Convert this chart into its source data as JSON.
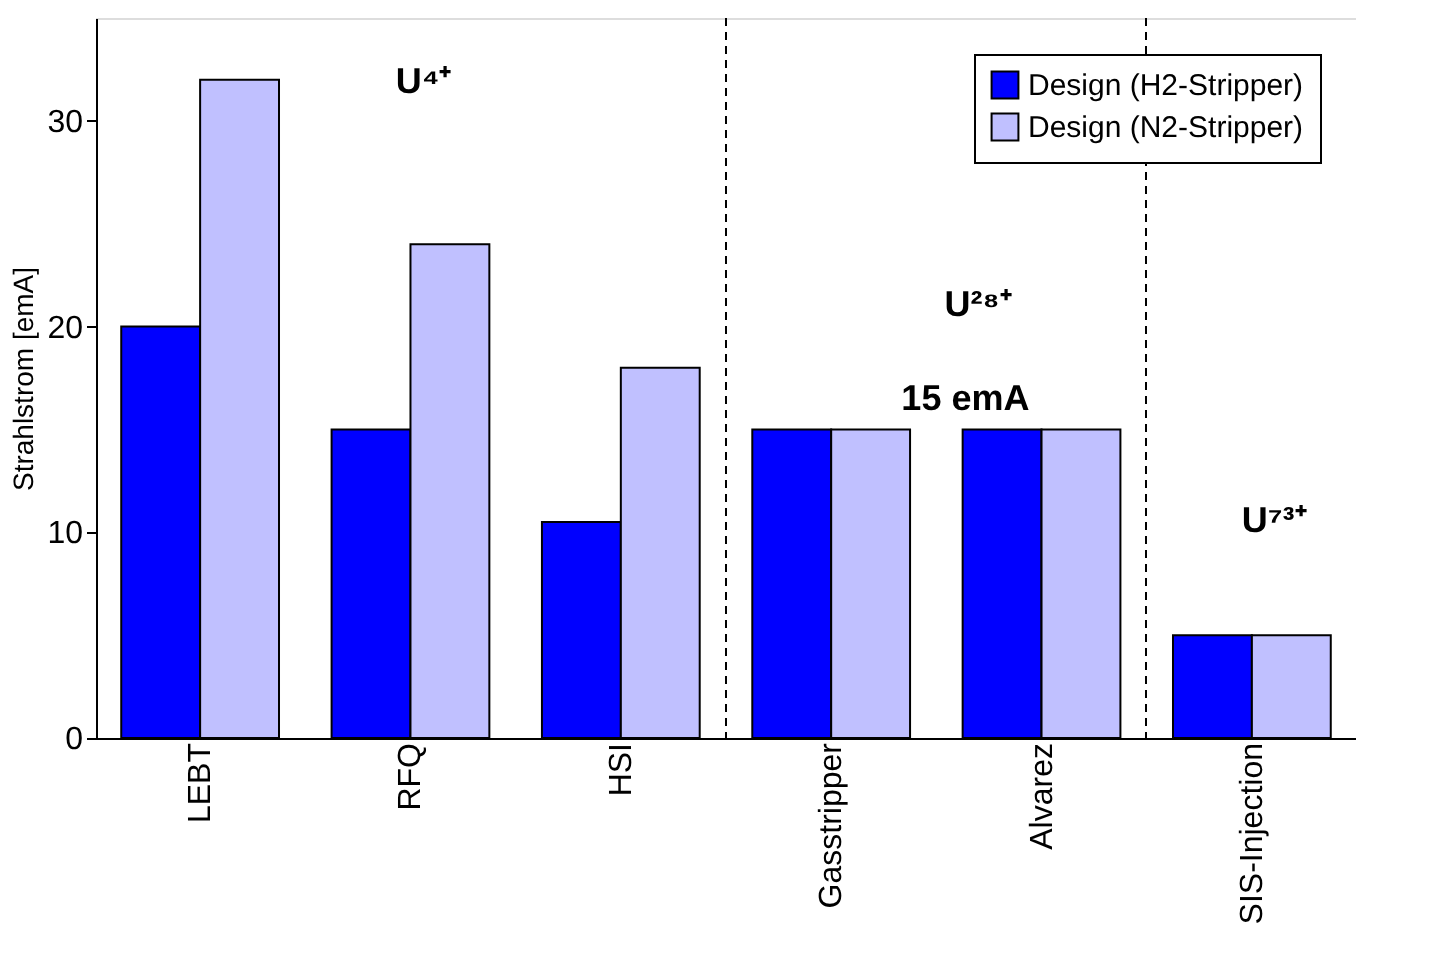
{
  "chart_data": {
    "type": "bar",
    "ylabel": "Strahlstrom [emA]",
    "categories": [
      "LEBT",
      "RFQ",
      "HSI",
      "Gasstripper",
      "Alvarez",
      "SIS-Injection"
    ],
    "series": [
      {
        "name": "Design (H2-Stripper)",
        "color": "#0000ff",
        "values": [
          20,
          15,
          10.5,
          15,
          15,
          5
        ]
      },
      {
        "name": "Design (N2-Stripper)",
        "color": "#c0c0ff",
        "values": [
          32,
          24,
          18,
          15,
          15,
          5
        ]
      }
    ],
    "ylim": [
      0,
      35
    ],
    "yticks": [
      0,
      10,
      20,
      30
    ],
    "grid": false,
    "legend": "top right",
    "annotations": [
      "U⁴⁺",
      "U²⁸⁺",
      "U⁷³⁺",
      "15 emA"
    ]
  }
}
